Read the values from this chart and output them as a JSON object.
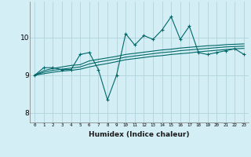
{
  "xlabel": "Humidex (Indice chaleur)",
  "x_values": [
    0,
    1,
    2,
    3,
    4,
    5,
    6,
    7,
    8,
    9,
    10,
    11,
    12,
    13,
    14,
    15,
    16,
    17,
    18,
    19,
    20,
    21,
    22,
    23
  ],
  "line1": [
    9.0,
    9.2,
    9.2,
    9.15,
    9.15,
    9.55,
    9.6,
    9.15,
    8.35,
    9.0,
    10.1,
    9.8,
    10.05,
    9.95,
    10.2,
    10.55,
    9.95,
    10.3,
    9.6,
    9.55,
    9.6,
    9.65,
    9.7,
    9.55
  ],
  "line2": [
    9.0,
    9.12,
    9.18,
    9.22,
    9.26,
    9.28,
    9.38,
    9.42,
    9.46,
    9.5,
    9.55,
    9.58,
    9.61,
    9.64,
    9.67,
    9.69,
    9.72,
    9.74,
    9.76,
    9.78,
    9.79,
    9.81,
    9.82,
    9.83
  ],
  "line3": [
    9.0,
    9.08,
    9.13,
    9.16,
    9.19,
    9.22,
    9.3,
    9.35,
    9.39,
    9.43,
    9.48,
    9.51,
    9.54,
    9.57,
    9.6,
    9.62,
    9.65,
    9.67,
    9.69,
    9.71,
    9.73,
    9.75,
    9.76,
    9.77
  ],
  "line4": [
    9.0,
    9.04,
    9.08,
    9.11,
    9.13,
    9.16,
    9.22,
    9.27,
    9.31,
    9.36,
    9.41,
    9.44,
    9.47,
    9.5,
    9.52,
    9.55,
    9.57,
    9.59,
    9.62,
    9.64,
    9.66,
    9.68,
    9.7,
    9.71
  ],
  "line_color": "#006868",
  "bg_color": "#d4eef5",
  "grid_color": "#aacdd8",
  "ylim": [
    7.75,
    10.95
  ],
  "yticks": [
    8,
    9,
    10
  ],
  "xlim": [
    -0.5,
    23.5
  ]
}
